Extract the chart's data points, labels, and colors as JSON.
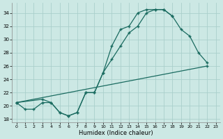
{
  "xlabel": "Humidex (Indice chaleur)",
  "background_color": "#cce8e4",
  "grid_color": "#aacfcb",
  "line_color": "#1a6b60",
  "xlim": [
    -0.5,
    23.5
  ],
  "ylim": [
    17.5,
    35.5
  ],
  "xticks": [
    0,
    1,
    2,
    3,
    4,
    5,
    6,
    7,
    8,
    9,
    10,
    11,
    12,
    13,
    14,
    15,
    16,
    17,
    18,
    19,
    20,
    21,
    22,
    23
  ],
  "yticks": [
    18,
    20,
    22,
    24,
    26,
    28,
    30,
    32,
    34
  ],
  "line1_x": [
    0,
    1,
    2,
    3,
    4,
    5,
    6,
    7,
    8,
    9,
    10,
    11,
    12,
    13,
    14,
    15,
    16,
    17,
    18
  ],
  "line1_y": [
    20.5,
    19.5,
    19.5,
    20.5,
    20.5,
    19.0,
    18.5,
    19.0,
    22.0,
    22.0,
    25.0,
    29.0,
    31.5,
    32.0,
    34.0,
    34.5,
    34.5,
    34.5,
    33.5
  ],
  "line2_x": [
    0,
    3,
    4,
    5,
    6,
    7,
    8,
    9,
    10,
    11,
    12,
    13,
    14,
    15,
    16,
    17,
    18,
    19,
    20,
    21,
    22
  ],
  "line2_y": [
    20.5,
    21.0,
    20.5,
    19.0,
    18.5,
    19.0,
    22.0,
    22.0,
    25.0,
    27.0,
    29.0,
    31.0,
    32.0,
    34.0,
    34.5,
    34.5,
    33.5,
    31.5,
    30.5,
    28.0,
    26.5
  ],
  "line3_x": [
    0,
    22
  ],
  "line3_y": [
    20.5,
    26.0
  ]
}
